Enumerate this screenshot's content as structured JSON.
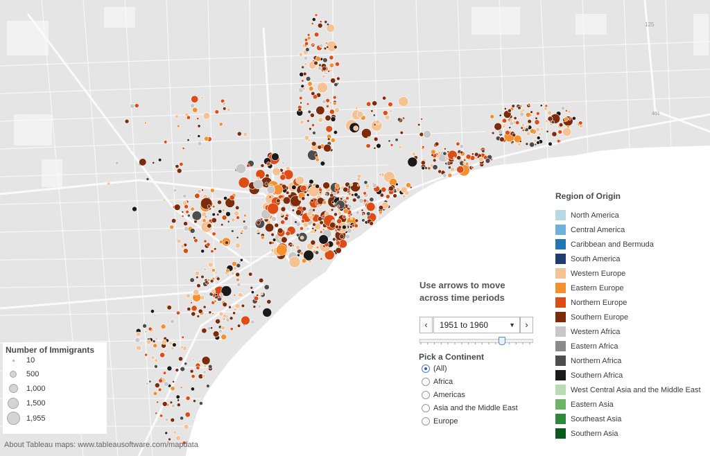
{
  "map": {
    "colors": {
      "land": "#e5e5e5",
      "water": "#ffffff",
      "roads": "#f8f8f8",
      "park": "#f2f2f2"
    },
    "highway_labels": [
      "125",
      "401"
    ]
  },
  "region_legend": {
    "title": "Region of Origin",
    "items": [
      {
        "label": "North America",
        "color": "#b6d9e6"
      },
      {
        "label": "Central America",
        "color": "#6fb1dd"
      },
      {
        "label": "Caribbean and Bermuda",
        "color": "#1f77b4"
      },
      {
        "label": "South America",
        "color": "#1f3d70"
      },
      {
        "label": "Western Europe",
        "color": "#f5c293"
      },
      {
        "label": "Eastern Europe",
        "color": "#f4902e"
      },
      {
        "label": "Northern Europe",
        "color": "#dd4c14"
      },
      {
        "label": "Southern Europe",
        "color": "#7c2c0b"
      },
      {
        "label": "Western Africa",
        "color": "#c8c8c8"
      },
      {
        "label": "Eastern Africa",
        "color": "#8a8a8a"
      },
      {
        "label": "Northern Africa",
        "color": "#4d4d4d"
      },
      {
        "label": "Southern Africa",
        "color": "#1a1a1a"
      },
      {
        "label": "West Central Asia and the Middle East",
        "color": "#b8dbb3"
      },
      {
        "label": "Eastern Asia",
        "color": "#6cb567"
      },
      {
        "label": "Southeast Asia",
        "color": "#2d8a3a"
      },
      {
        "label": "Southern Asia",
        "color": "#0a5a20"
      }
    ]
  },
  "time_panel": {
    "instruction": "Use arrows to move across time periods",
    "selected_period": "1951 to 1960",
    "prev_icon": "‹",
    "next_icon": "›",
    "slider_position_fraction": 0.73,
    "continent_title": "Pick a Continent",
    "continents": [
      {
        "label": "(All)",
        "selected": true
      },
      {
        "label": "Africa",
        "selected": false
      },
      {
        "label": "Americas",
        "selected": false
      },
      {
        "label": "Asia and the Middle East",
        "selected": false
      },
      {
        "label": "Europe",
        "selected": false
      }
    ]
  },
  "size_legend": {
    "title": "Number of Immigrants",
    "items": [
      "10",
      "500",
      "1,000",
      "1,500",
      "1,955"
    ]
  },
  "attribution": "About Tableau maps: www.tableausoftware.com/mapdata"
}
